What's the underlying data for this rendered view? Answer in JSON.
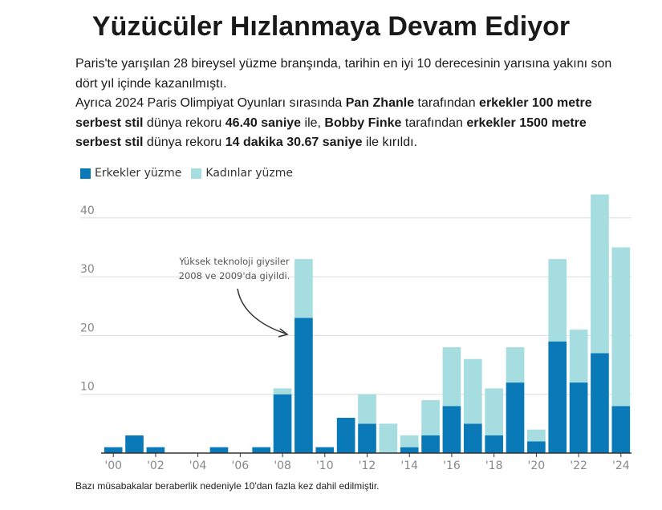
{
  "title": "Yüzücüler Hızlanmaya Devam Ediyor",
  "intro": {
    "line1": "Paris'te yarışılan 28 bireysel yüzme branşında, tarihin en iyi 10 derecesinin yarısına yakını son dört yıl içinde kazanılmıştı.",
    "p2_a": "Ayrıca 2024 Paris Olimpiyat Oyunları sırasında ",
    "p2_b": "Pan Zhanle",
    "p2_c": " tarafından ",
    "p2_d": "erkekler 100 metre serbest stil",
    "p2_e": " dünya rekoru ",
    "p2_f": "46.40 saniye",
    "p2_g": " ile, ",
    "p2_h": "Bobby Finke",
    "p2_i": " tarafından ",
    "p2_j": "erkekler 1500 metre serbest stil",
    "p2_k": " dünya rekoru ",
    "p2_l": "14 dakika 30.67 saniye",
    "p2_m": " ile kırıldı."
  },
  "legend": {
    "men": "Erkekler yüzme",
    "women": "Kadınlar yüzme"
  },
  "colors": {
    "men": "#0a79b8",
    "women": "#a5dde0",
    "grid": "#dddddd",
    "axis": "#333333"
  },
  "annotation": {
    "line1": "Yüksek teknoloji giysiler",
    "line2": "2008 ve 2009'da giyildi."
  },
  "footnote": "Bazı müsabakalar beraberlik nedeniyle 10'dan fazla kez dahil edilmiştir.",
  "chart_data": {
    "type": "bar",
    "stacked": true,
    "x": [
      2000,
      2001,
      2002,
      2003,
      2004,
      2005,
      2006,
      2007,
      2008,
      2009,
      2010,
      2011,
      2012,
      2013,
      2014,
      2015,
      2016,
      2017,
      2018,
      2019,
      2020,
      2021,
      2022,
      2023,
      2024
    ],
    "series": [
      {
        "name": "Erkekler yüzme",
        "values": [
          1,
          3,
          1,
          0,
          0,
          1,
          0,
          1,
          10,
          23,
          1,
          6,
          5,
          0,
          1,
          3,
          8,
          5,
          3,
          12,
          2,
          19,
          12,
          17,
          8
        ]
      },
      {
        "name": "Kadınlar yüzme",
        "values": [
          0,
          0,
          0,
          0,
          0,
          0,
          0,
          0,
          1,
          10,
          0,
          0,
          5,
          5,
          2,
          6,
          10,
          11,
          8,
          6,
          2,
          14,
          9,
          27,
          27
        ]
      }
    ],
    "x_tick_labels": [
      "'00",
      "'02",
      "'04",
      "'06",
      "'08",
      "'10",
      "'12",
      "'14",
      "'16",
      "'18",
      "'20",
      "'22",
      "'24"
    ],
    "x_tick_years": [
      2000,
      2002,
      2004,
      2006,
      2008,
      2010,
      2012,
      2014,
      2016,
      2018,
      2020,
      2022,
      2024
    ],
    "y_ticks": [
      10,
      20,
      30,
      40
    ],
    "ylim": [
      0,
      44
    ],
    "grid": true,
    "legend_position": "top-left"
  }
}
